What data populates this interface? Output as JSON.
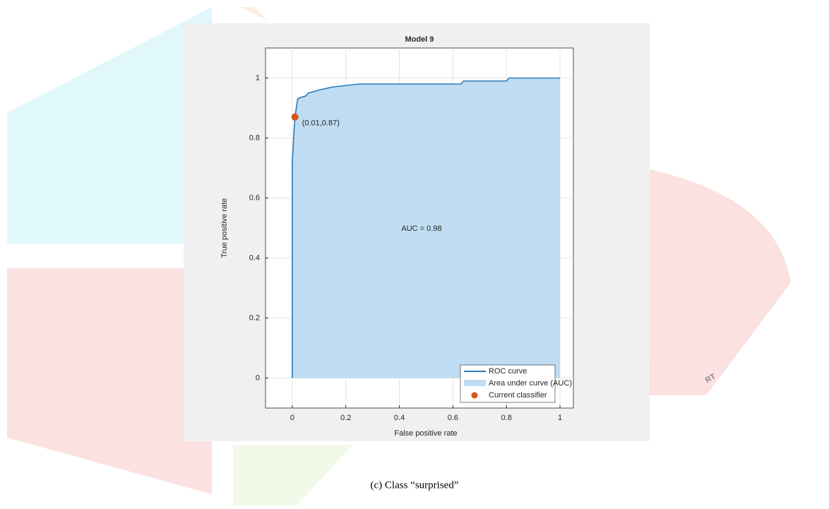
{
  "chart_data": {
    "type": "roc",
    "title": "Model 9",
    "x_label": "False positive rate",
    "y_label": "True positive rate",
    "caption": "(c) Class “surprised”",
    "xlim": [
      -0.1,
      1.05
    ],
    "ylim": [
      -0.1,
      1.1
    ],
    "xticks": [
      0,
      0.2,
      0.4,
      0.6,
      0.8,
      1
    ],
    "yticks": [
      0,
      0.2,
      0.4,
      0.6,
      0.8,
      1
    ],
    "grid": true,
    "legend_position": "lower right",
    "series": [
      {
        "name": "ROC curve",
        "color": "#2a7ab9",
        "x": [
          0,
          0,
          0.005,
          0.01,
          0.015,
          0.02,
          0.03,
          0.05,
          0.06,
          0.1,
          0.15,
          0.2,
          0.25,
          0.63,
          0.64,
          0.8,
          0.81,
          1
        ],
        "values": [
          0,
          0.72,
          0.8,
          0.87,
          0.9,
          0.93,
          0.935,
          0.94,
          0.95,
          0.96,
          0.97,
          0.975,
          0.98,
          0.98,
          0.99,
          0.99,
          1,
          1
        ]
      }
    ],
    "area": {
      "name": "Area under curve (AUC)",
      "color": "#bfdcf2",
      "label": "AUC = 0.98"
    },
    "point": {
      "name": "Current classifier",
      "color": "#d95319",
      "x": 0.01,
      "y": 0.87,
      "label": "(0.01,0.87)"
    }
  }
}
